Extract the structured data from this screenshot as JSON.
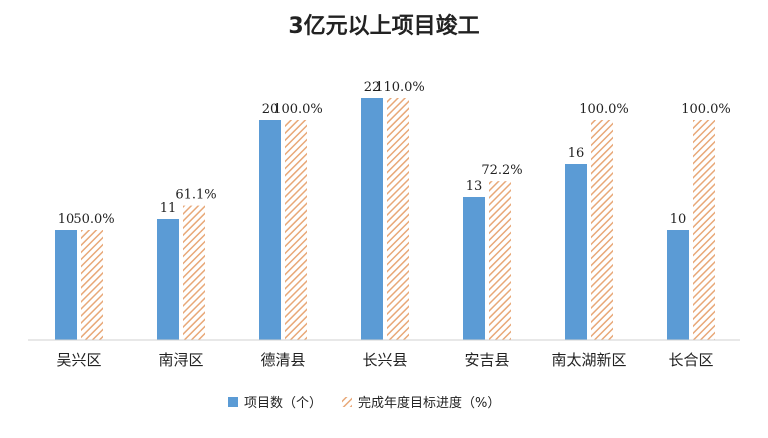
{
  "chart_data": {
    "type": "bar",
    "title": "3亿元以上项目竣工",
    "xlabel": "",
    "ylabel": "",
    "categories": [
      "吴兴区",
      "南浔区",
      "德清县",
      "长兴县",
      "安吉县",
      "南太湖新区",
      "长合区"
    ],
    "series": [
      {
        "name": "项目数（个）",
        "values": [
          10,
          11,
          20,
          22,
          13,
          16,
          10
        ],
        "labels": [
          "10",
          "11",
          "20",
          "22",
          "13",
          "16",
          "10"
        ],
        "color": "#5b9bd5",
        "pattern": "solid"
      },
      {
        "name": "完成年度目标进度（%）",
        "values": [
          50.0,
          61.1,
          100.0,
          110.0,
          72.2,
          100.0,
          100.0
        ],
        "labels": [
          "50.0%",
          "61.1%",
          "100.0%",
          "110.0%",
          "72.2%",
          "100.0%",
          "100.0%"
        ],
        "color": "#ed7d31",
        "pattern": "diagonal-hatch"
      }
    ],
    "grid": false,
    "legend_position": "bottom"
  }
}
